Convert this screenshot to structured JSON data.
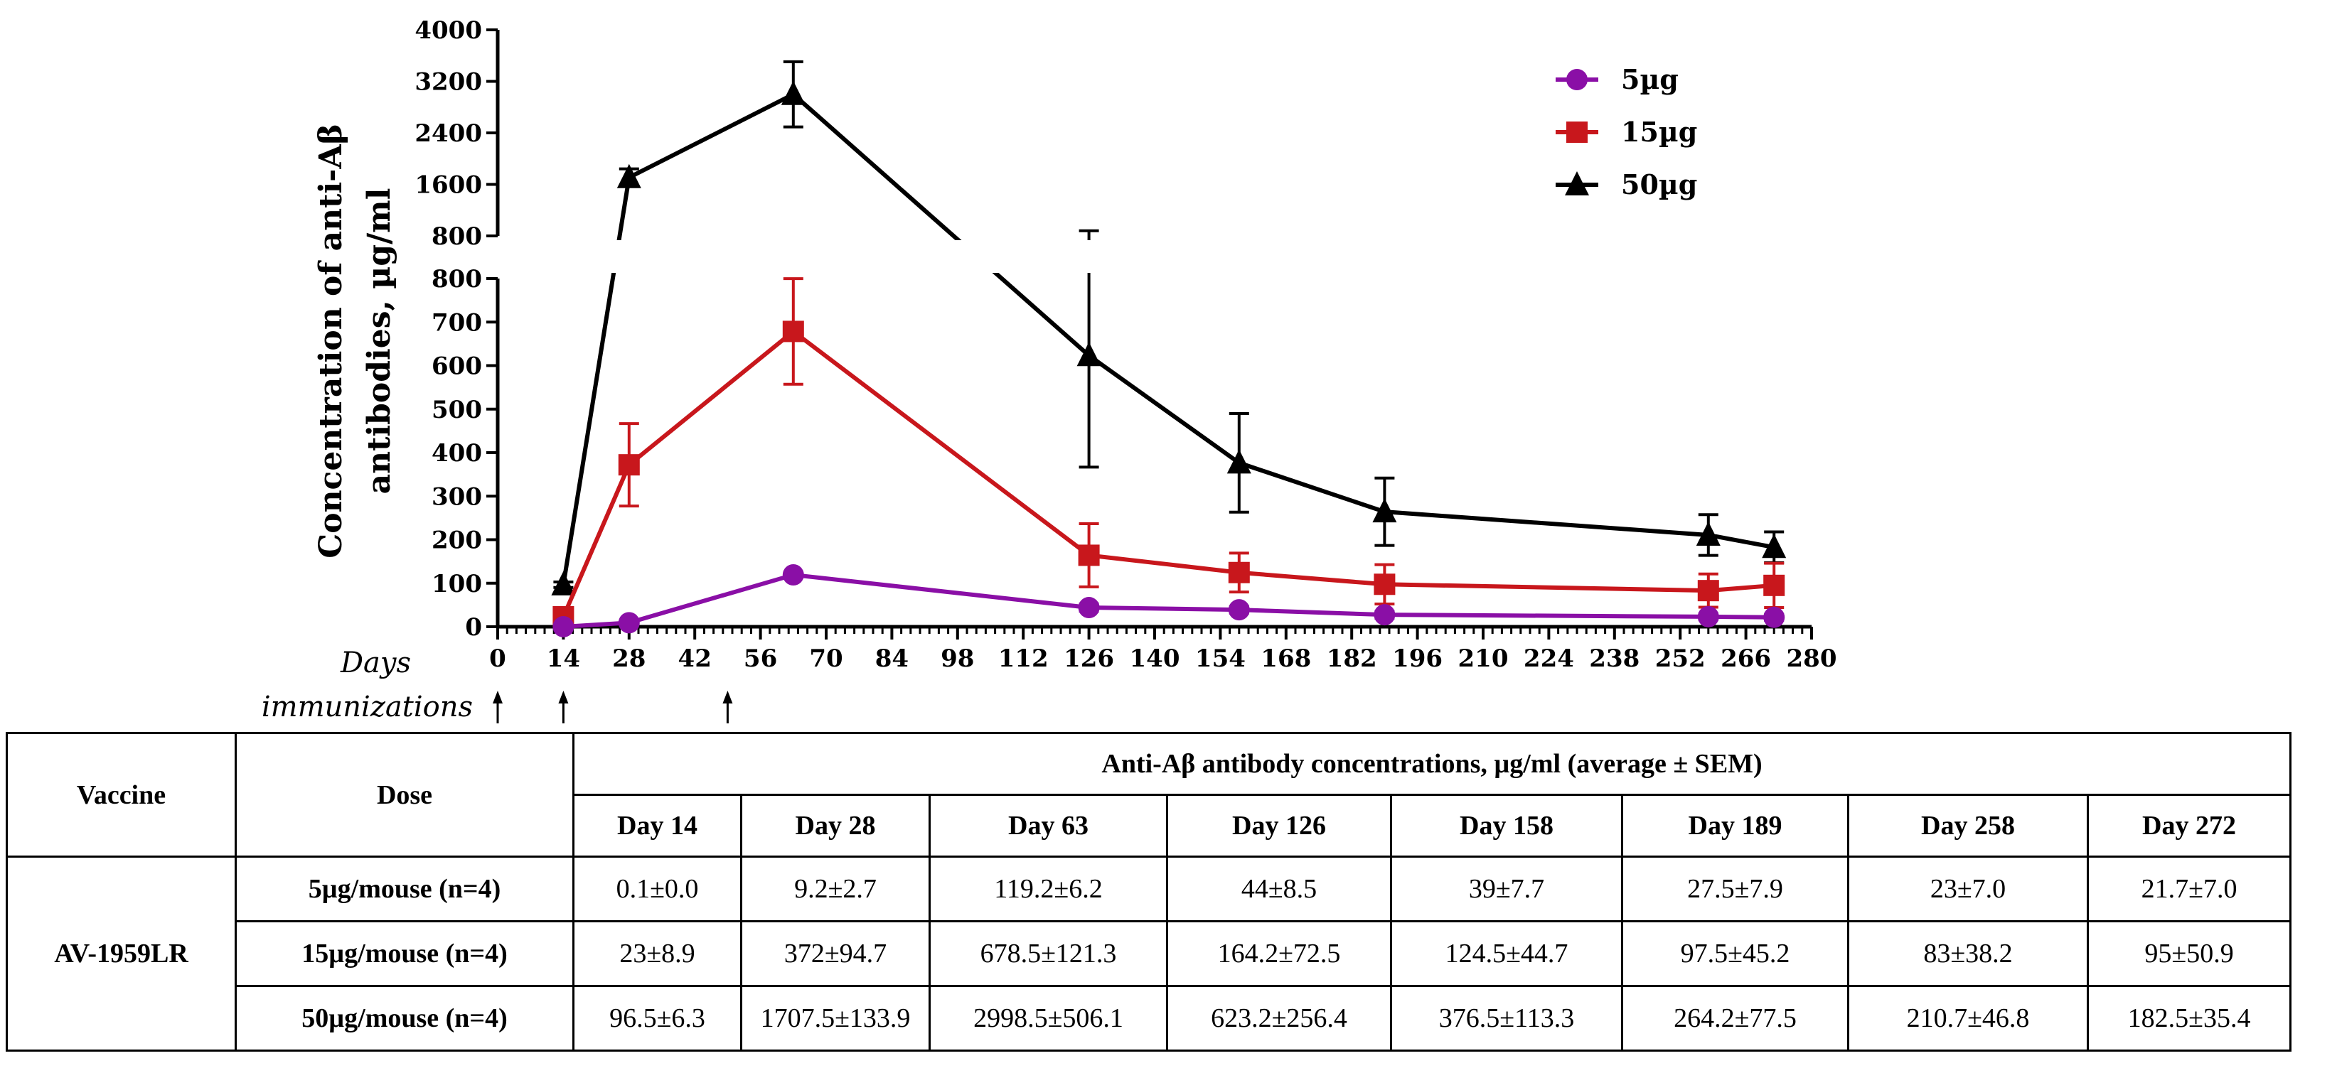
{
  "chart_data": {
    "type": "line",
    "title": "",
    "xlabel": "Days",
    "ylabel_line1": "Concentration of anti-Aβ",
    "ylabel_line2": "antibodies, µg/ml",
    "immunizations_label": "immunizations",
    "immunization_days": [
      0,
      14,
      49
    ],
    "x_ticks": [
      0,
      14,
      28,
      42,
      56,
      70,
      84,
      98,
      112,
      126,
      140,
      154,
      168,
      182,
      196,
      210,
      224,
      238,
      252,
      266,
      280
    ],
    "xlim": [
      0,
      280
    ],
    "y_lower_ticks": [
      0,
      100,
      200,
      300,
      400,
      500,
      600,
      700,
      800
    ],
    "y_lower_range": [
      0,
      800
    ],
    "y_upper_ticks": [
      800,
      1600,
      2400,
      3200,
      4000
    ],
    "y_upper_range": [
      800,
      4000
    ],
    "x": [
      14,
      28,
      63,
      126,
      158,
      189,
      258,
      272
    ],
    "series": [
      {
        "name": "5µg",
        "color": "#8a0fa6",
        "marker": "circle",
        "values": [
          0.1,
          9.2,
          119.2,
          44,
          39,
          27.5,
          23,
          21.7
        ],
        "errors": [
          0.0,
          2.7,
          6.2,
          8.5,
          7.7,
          7.9,
          7.0,
          7.0
        ]
      },
      {
        "name": "15µg",
        "color": "#c8171c",
        "marker": "square",
        "values": [
          23,
          372,
          678.5,
          164.2,
          124.5,
          97.5,
          83,
          95
        ],
        "errors": [
          8.9,
          94.7,
          121.3,
          72.5,
          44.7,
          45.2,
          38.2,
          50.9
        ]
      },
      {
        "name": "50µg",
        "color": "#000000",
        "marker": "triangle",
        "values": [
          96.5,
          1707.5,
          2998.5,
          623.2,
          376.5,
          264.2,
          210.7,
          182.5
        ],
        "errors": [
          6.3,
          133.9,
          506.1,
          256.4,
          113.3,
          77.5,
          46.8,
          35.4
        ]
      }
    ],
    "legend_position": "top-right"
  },
  "table": {
    "col_vaccine": "Vaccine",
    "col_dose": "Dose",
    "header_span": "Anti-Aβ antibody concentrations, µg/ml (average ± SEM)",
    "days": [
      "Day 14",
      "Day 28",
      "Day 63",
      "Day 126",
      "Day 158",
      "Day 189",
      "Day 258",
      "Day 272"
    ],
    "vaccine": "AV-1959LR",
    "rows": [
      {
        "dose": "5µg/mouse (n=4)",
        "values": [
          "0.1±0.0",
          "9.2±2.7",
          "119.2±6.2",
          "44±8.5",
          "39±7.7",
          "27.5±7.9",
          "23±7.0",
          "21.7±7.0"
        ]
      },
      {
        "dose": "15µg/mouse (n=4)",
        "values": [
          "23±8.9",
          "372±94.7",
          "678.5±121.3",
          "164.2±72.5",
          "124.5±44.7",
          "97.5±45.2",
          "83±38.2",
          "95±50.9"
        ]
      },
      {
        "dose": "50µg/mouse (n=4)",
        "values": [
          "96.5±6.3",
          "1707.5±133.9",
          "2998.5±506.1",
          "623.2±256.4",
          "376.5±113.3",
          "264.2±77.5",
          "210.7±46.8",
          "182.5±35.4"
        ]
      }
    ]
  }
}
